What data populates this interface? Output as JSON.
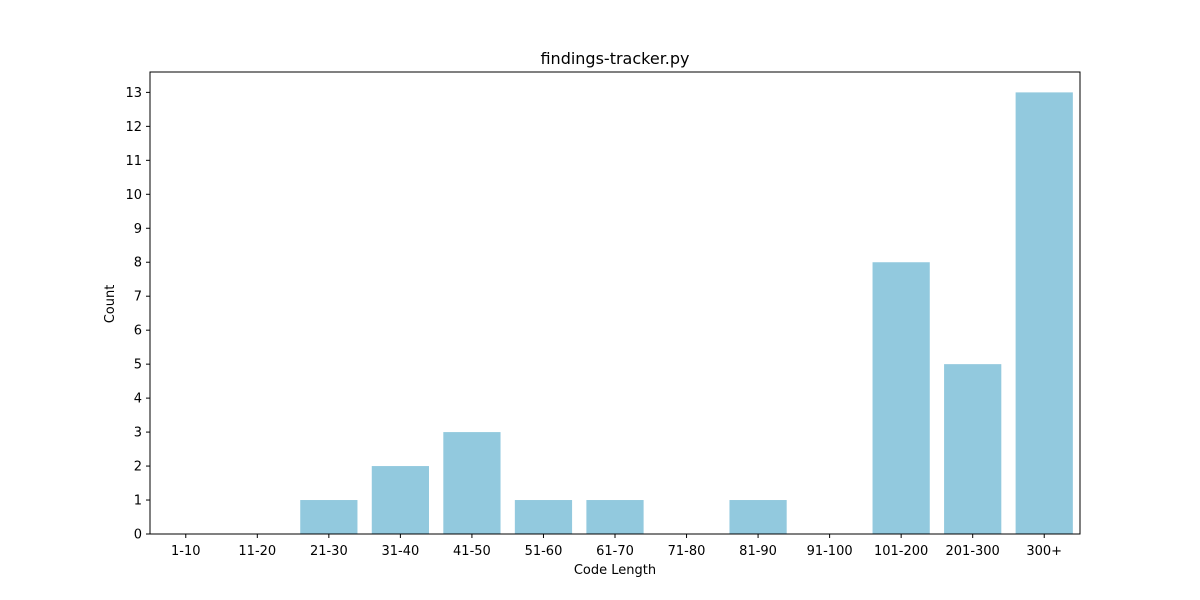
{
  "chart_data": {
    "type": "bar",
    "title": "findings-tracker.py",
    "xlabel": "Code Length",
    "ylabel": "Count",
    "categories": [
      "1-10",
      "11-20",
      "21-30",
      "31-40",
      "41-50",
      "51-60",
      "61-70",
      "71-80",
      "81-90",
      "91-100",
      "101-200",
      "201-300",
      "300+"
    ],
    "values": [
      0,
      0,
      1,
      2,
      3,
      1,
      1,
      0,
      1,
      0,
      8,
      5,
      13
    ],
    "ylim": [
      0,
      13.6
    ],
    "yticks": [
      "0",
      "1",
      "2",
      "3",
      "4",
      "5",
      "6",
      "7",
      "8",
      "9",
      "10",
      "11",
      "12",
      "13"
    ],
    "bar_color": "#92c9de",
    "grid": false,
    "legend": "none"
  }
}
